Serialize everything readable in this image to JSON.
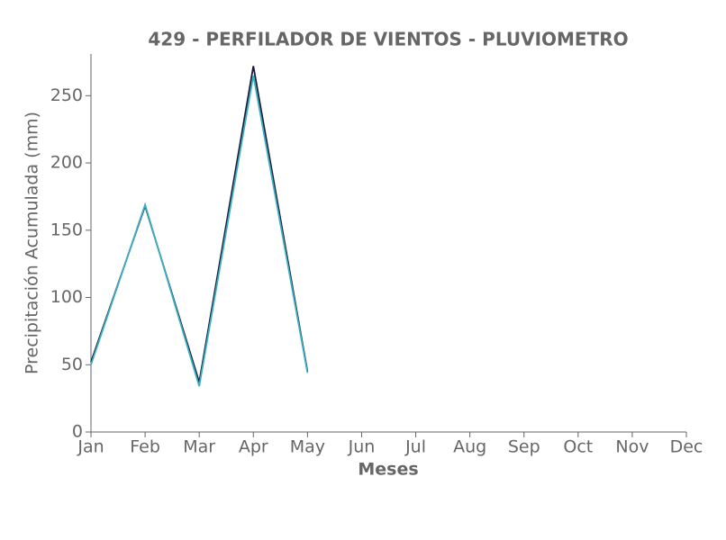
{
  "chart_data": {
    "type": "line",
    "title": "429 - PERFILADOR DE VIENTOS - PLUVIOMETRO",
    "x_label": "Meses",
    "y_label": "Precipitación Acumulada (mm)",
    "categories": [
      "Jan",
      "Feb",
      "Mar",
      "Apr",
      "May",
      "Jun",
      "Jul",
      "Aug",
      "Sep",
      "Oct",
      "Nov",
      "Dec"
    ],
    "series": [
      {
        "color": "#1a1a3a",
        "values": [
          52,
          168,
          37,
          272,
          45,
          null,
          null,
          null,
          null,
          null,
          null,
          null
        ]
      },
      {
        "color": "#3ab0c0",
        "values": [
          50,
          169,
          34,
          265,
          44,
          null,
          null,
          null,
          null,
          null,
          null,
          null
        ]
      }
    ],
    "ylim": [
      0,
      281
    ],
    "yticks": [
      0,
      50,
      100,
      150,
      200,
      250
    ]
  }
}
